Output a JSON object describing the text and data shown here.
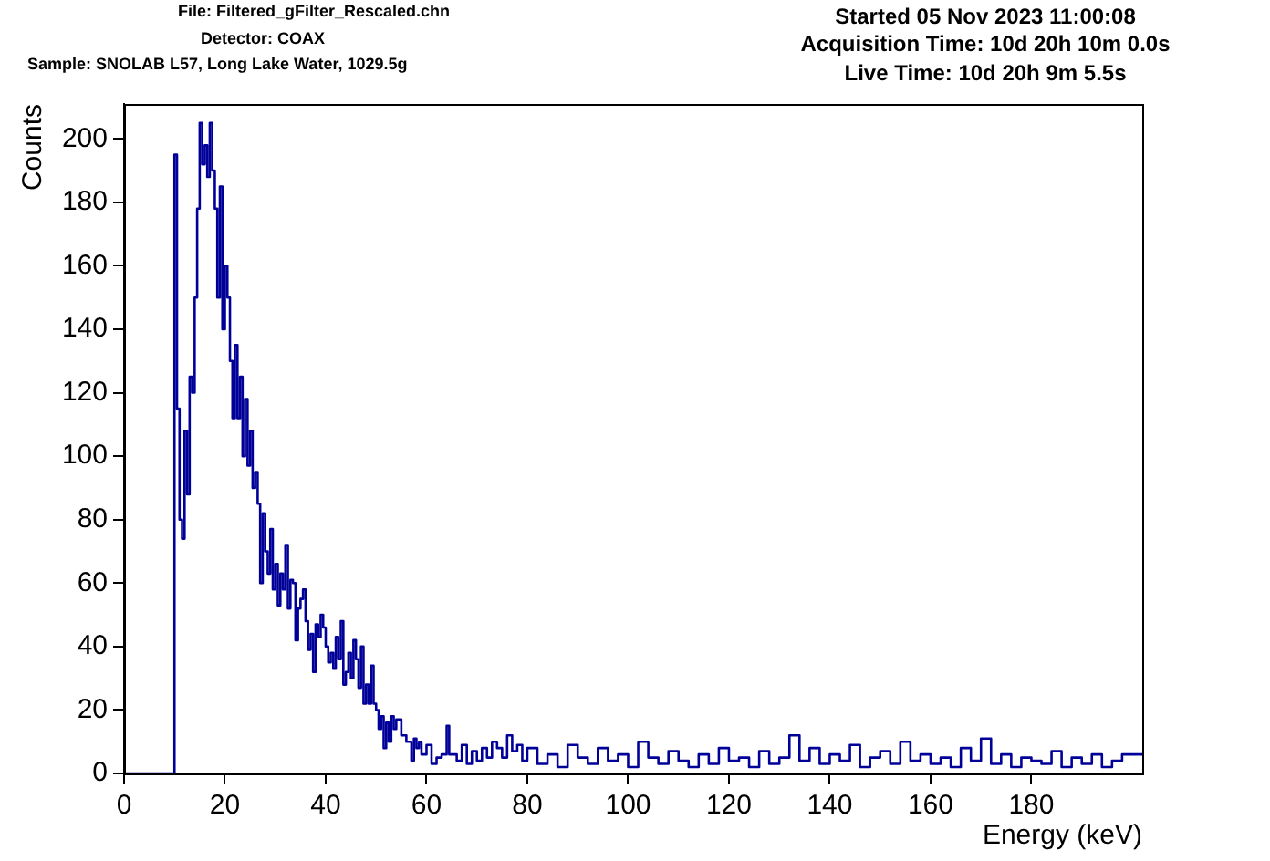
{
  "chart_data": {
    "type": "step",
    "xlabel": "Energy (keV)",
    "ylabel": "Counts",
    "annotations": [
      "File: Filtered_gFilter_Rescaled.chn",
      "Detector: COAX",
      "Sample: SNOLAB L57, Long Lake Water, 1029.5g",
      "Started 05 Nov 2023 11:00:08",
      "Acquisition Time: 10d 20h 10m 0.0s",
      "Live Time: 10d 20h 9m 5.5s"
    ],
    "xlim": [
      0,
      202
    ],
    "xticks": [
      0,
      20,
      40,
      60,
      80,
      100,
      120,
      140,
      160,
      180
    ],
    "ylim": [
      0,
      211
    ],
    "yticks": [
      0,
      20,
      40,
      60,
      80,
      100,
      120,
      140,
      160,
      180,
      200
    ],
    "grid": false,
    "legend": false,
    "series": [
      {
        "color": "#000099",
        "x": [
          0,
          10,
          10.5,
          11,
          11.5,
          12,
          12.5,
          13,
          13.5,
          14,
          14.5,
          15,
          15.5,
          16,
          16.5,
          17,
          17.5,
          18,
          18.5,
          19,
          19.5,
          20,
          20.5,
          21,
          21.5,
          22,
          22.5,
          23,
          23.5,
          24,
          24.5,
          25,
          25.5,
          26,
          26.5,
          27,
          27.5,
          28,
          28.5,
          29,
          29.5,
          30,
          30.5,
          31,
          31.5,
          32,
          32.5,
          33,
          33.5,
          34,
          34.5,
          35,
          35.5,
          36,
          36.5,
          37,
          37.5,
          38,
          38.5,
          39,
          39.5,
          40,
          40.5,
          41,
          41.5,
          42,
          42.5,
          43,
          43.5,
          44,
          44.5,
          45,
          45.5,
          46,
          46.5,
          47,
          47.5,
          48,
          48.5,
          49,
          49.5,
          50,
          50.5,
          51,
          51.5,
          52,
          52.5,
          53,
          53.5,
          54,
          55,
          56,
          57,
          57.5,
          58,
          58.5,
          59,
          60,
          61,
          62,
          63,
          64,
          64.5,
          66,
          67,
          68,
          69,
          70,
          71,
          72,
          73,
          74,
          75,
          76,
          77,
          78,
          79,
          80,
          82,
          84,
          86,
          88,
          90,
          92,
          94,
          96,
          98,
          100,
          102,
          104,
          106,
          108,
          110,
          112,
          114,
          116,
          118,
          120,
          122,
          124,
          126,
          128,
          130,
          132,
          134,
          136,
          138,
          140,
          142,
          144,
          146,
          148,
          150,
          152,
          154,
          156,
          158,
          160,
          162,
          164,
          166,
          168,
          170,
          172,
          174,
          176,
          178,
          180,
          182,
          184,
          186,
          188,
          190,
          192,
          194,
          196,
          198,
          200,
          202
        ],
        "values": [
          0,
          195,
          115,
          80,
          74,
          108,
          88,
          125,
          120,
          150,
          178,
          205,
          192,
          198,
          188,
          205,
          190,
          178,
          150,
          185,
          140,
          160,
          150,
          130,
          112,
          135,
          112,
          125,
          100,
          118,
          97,
          108,
          90,
          95,
          85,
          60,
          82,
          70,
          63,
          77,
          58,
          66,
          53,
          63,
          58,
          72,
          52,
          61,
          60,
          42,
          52,
          55,
          58,
          48,
          39,
          44,
          32,
          47,
          43,
          50,
          46,
          40,
          35,
          38,
          33,
          43,
          36,
          48,
          28,
          32,
          38,
          30,
          42,
          36,
          27,
          40,
          22,
          28,
          22,
          34,
          22,
          20,
          14,
          18,
          8,
          16,
          10,
          18,
          14,
          17,
          12,
          10,
          4,
          11,
          8,
          10,
          6,
          9,
          3,
          5,
          6,
          15,
          6,
          4,
          9,
          3,
          7,
          4,
          8,
          5,
          10,
          8,
          5,
          12,
          7,
          9,
          4,
          8,
          3,
          6,
          2,
          9,
          5,
          3,
          8,
          4,
          6,
          2,
          10,
          5,
          3,
          7,
          4,
          2,
          6,
          3,
          8,
          4,
          5,
          2,
          7,
          3,
          5,
          12,
          4,
          8,
          3,
          6,
          4,
          9,
          2,
          5,
          7,
          3,
          10,
          4,
          6,
          3,
          5,
          2,
          8,
          4,
          11,
          3,
          6,
          2,
          5,
          4,
          3,
          7,
          2,
          5,
          3,
          6,
          2,
          4,
          6,
          6,
          6
        ]
      }
    ]
  }
}
